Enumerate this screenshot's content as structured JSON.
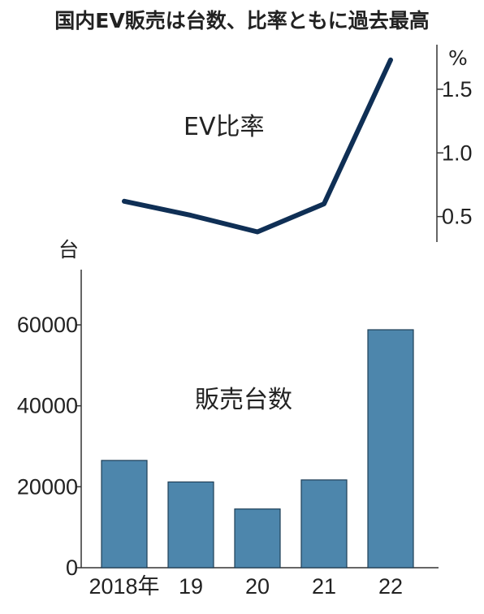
{
  "title": "国内EV販売は台数、比率ともに過去最高",
  "chart_data": [
    {
      "type": "line",
      "series": [
        {
          "name": "EV比率",
          "values": [
            0.62,
            0.51,
            0.38,
            0.6,
            1.73
          ]
        }
      ],
      "categories": [
        "2018年",
        "19",
        "20",
        "21",
        "22"
      ],
      "unit": "%",
      "yticks": [
        "0.5",
        "1.0",
        "1.5"
      ],
      "ytick_values": [
        0.5,
        1.0,
        1.5
      ],
      "ylim": [
        0.3,
        1.85
      ],
      "axis_side": "right",
      "color": "#0f2f55"
    },
    {
      "type": "bar",
      "series": [
        {
          "name": "販売台数",
          "values": [
            26500,
            21200,
            14500,
            21700,
            58800
          ]
        }
      ],
      "categories": [
        "2018年",
        "19",
        "20",
        "21",
        "22"
      ],
      "unit": "台",
      "yticks": [
        "0",
        "20000",
        "40000",
        "60000"
      ],
      "ytick_values": [
        0,
        20000,
        40000,
        60000
      ],
      "ylim": [
        0,
        72000
      ],
      "axis_side": "left",
      "color": "#4d86ac"
    }
  ]
}
